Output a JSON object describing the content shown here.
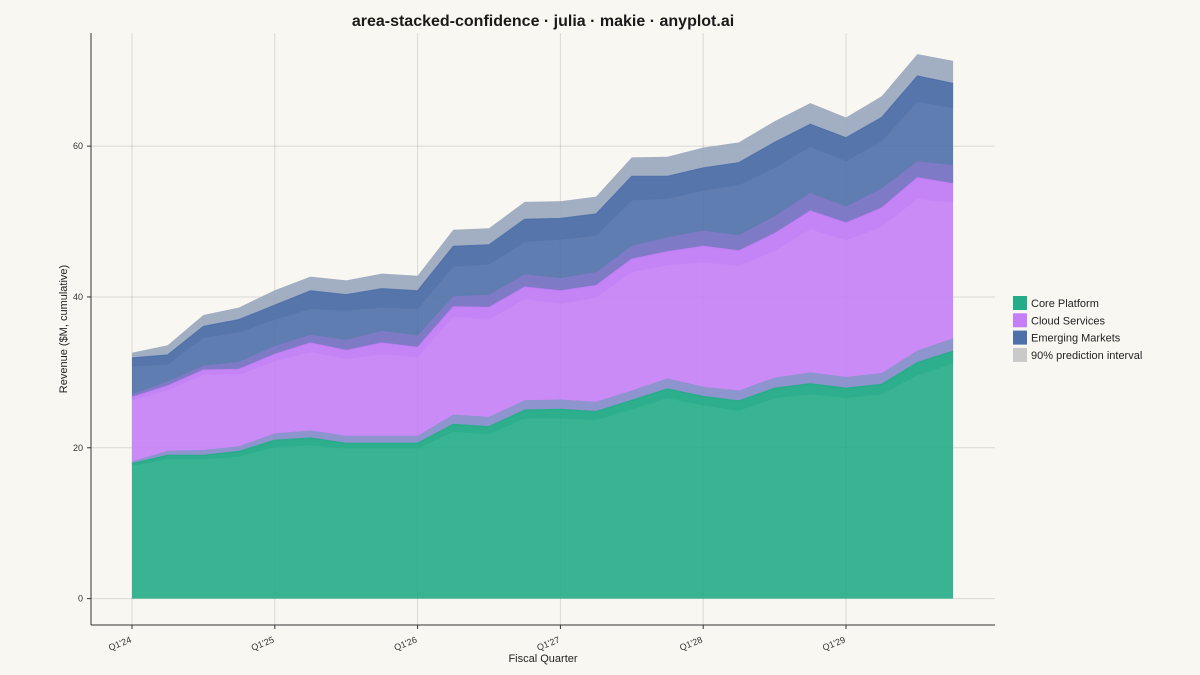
{
  "chart_data": {
    "type": "area",
    "stacked": true,
    "title": "area-stacked-confidence · julia · makie · anyplot.ai",
    "xlabel": "Fiscal Quarter",
    "ylabel": "Revenue ($M, cumulative)",
    "x_ticks": [
      "Q1'24",
      "Q1'25",
      "Q1'26",
      "Q1'27",
      "Q1'28",
      "Q1'29"
    ],
    "y_ticks": [
      0,
      20,
      40,
      60
    ],
    "ylim": [
      -3.5,
      75
    ],
    "quarters": 24,
    "grid": true,
    "legend_position": "right",
    "series": [
      {
        "name": "Core Platform",
        "color": "#22AC87",
        "values": [
          17.9,
          19.0,
          19.0,
          19.5,
          21.0,
          21.3,
          20.6,
          20.6,
          20.6,
          23.1,
          22.8,
          25.0,
          25.1,
          24.8,
          26.3,
          27.8,
          26.8,
          26.2,
          27.9,
          28.5,
          27.9,
          28.4,
          31.3,
          32.8
        ],
        "lower": [
          17.6,
          18.5,
          18.5,
          18.8,
          20.1,
          20.3,
          19.9,
          19.9,
          19.9,
          22.1,
          21.8,
          23.9,
          23.9,
          23.7,
          25.1,
          26.6,
          25.6,
          24.9,
          26.6,
          27.1,
          26.6,
          27.1,
          29.6,
          31.2
        ],
        "upper": [
          18.2,
          19.6,
          19.7,
          20.2,
          21.9,
          22.3,
          21.6,
          21.6,
          21.6,
          24.4,
          24.1,
          26.3,
          26.4,
          26.1,
          27.6,
          29.2,
          28.1,
          27.6,
          29.3,
          30.0,
          29.4,
          29.9,
          32.9,
          34.5
        ]
      },
      {
        "name": "Cloud Services",
        "color": "#C47EF7",
        "values": [
          26.7,
          28.2,
          30.3,
          30.4,
          32.4,
          33.9,
          32.9,
          33.9,
          33.3,
          38.7,
          38.6,
          41.3,
          40.8,
          41.5,
          45.0,
          46.0,
          46.7,
          46.1,
          48.4,
          51.4,
          49.8,
          51.8,
          55.8,
          55.0
        ],
        "lower": [
          26.3,
          27.6,
          29.7,
          29.7,
          31.5,
          32.7,
          31.8,
          32.4,
          32.0,
          37.4,
          37.0,
          39.7,
          39.1,
          39.9,
          43.3,
          44.2,
          44.6,
          44.1,
          46.1,
          49.0,
          47.5,
          49.3,
          53.0,
          52.5
        ],
        "upper": [
          27.1,
          28.8,
          30.9,
          31.4,
          33.5,
          35.0,
          34.3,
          35.5,
          34.9,
          40.1,
          40.3,
          43.0,
          42.5,
          43.3,
          46.8,
          47.9,
          48.8,
          48.2,
          50.7,
          53.8,
          52.0,
          54.4,
          58.0,
          57.5
        ]
      },
      {
        "name": "Emerging Markets",
        "color": "#4E6FA8",
        "values": [
          31.9,
          32.3,
          36.1,
          37.0,
          38.9,
          40.8,
          40.3,
          41.1,
          40.8,
          46.7,
          46.9,
          50.3,
          50.4,
          51.0,
          56.0,
          56.0,
          57.1,
          57.8,
          60.5,
          62.9,
          61.1,
          63.8,
          69.3,
          68.3
        ],
        "lower": [
          30.8,
          31.0,
          34.6,
          35.3,
          37.0,
          38.4,
          38.2,
          38.6,
          38.4,
          44.0,
          44.3,
          47.3,
          47.6,
          48.1,
          52.8,
          53.0,
          54.1,
          54.8,
          57.1,
          59.9,
          58.0,
          60.6,
          65.9,
          65.0
        ],
        "upper": [
          32.6,
          33.6,
          37.6,
          38.6,
          40.9,
          42.7,
          42.2,
          43.1,
          42.8,
          48.9,
          49.1,
          52.6,
          52.7,
          53.3,
          58.5,
          58.6,
          59.8,
          60.5,
          63.3,
          65.7,
          63.8,
          66.6,
          72.2,
          71.3
        ]
      }
    ],
    "band_name": "90% prediction interval",
    "band_color": "#C9C9C9"
  }
}
